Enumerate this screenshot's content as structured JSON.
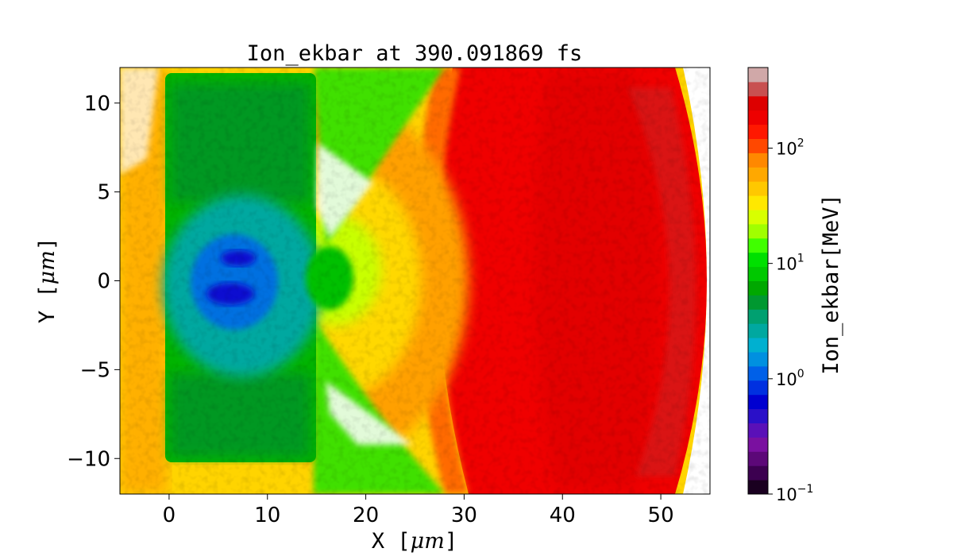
{
  "chart_data": {
    "type": "heatmap",
    "title": "Ion_ekbar at 390.091869 fs",
    "xlabel": {
      "prefix": "X [",
      "math": "μm",
      "suffix": "]"
    },
    "ylabel": {
      "prefix": "Y [",
      "math": "μm",
      "suffix": "]"
    },
    "xlim": [
      -5,
      55
    ],
    "ylim": [
      -12,
      12
    ],
    "x_ticks": [
      0,
      10,
      20,
      30,
      40,
      50
    ],
    "x_tick_labels": [
      "0",
      "10",
      "20",
      "30",
      "40",
      "50"
    ],
    "y_ticks": [
      -10,
      -5,
      0,
      5,
      10
    ],
    "y_tick_labels": [
      "−10",
      "−5",
      "0",
      "5",
      "10"
    ],
    "grid": false,
    "colorbar": {
      "label": "Ion_ekbar[MeV]",
      "scale": "log",
      "range": [
        0.1,
        500
      ],
      "ticks": [
        {
          "value": 0.1,
          "base": "10",
          "exp": "−1"
        },
        {
          "value": 1,
          "base": "10",
          "exp": "0"
        },
        {
          "value": 10,
          "base": "10",
          "exp": "1"
        },
        {
          "value": 100,
          "base": "10",
          "exp": "2"
        }
      ],
      "colors": [
        "#1a0020",
        "#3c0050",
        "#5c0878",
        "#7a10a0",
        "#5a10b8",
        "#2a10c8",
        "#0000d0",
        "#0030e0",
        "#0060e8",
        "#0090e0",
        "#00b0d0",
        "#00a8a0",
        "#00a070",
        "#009830",
        "#00a800",
        "#00c800",
        "#00e000",
        "#40ff00",
        "#a0ff00",
        "#d8ff00",
        "#ffe800",
        "#ffc800",
        "#ffa800",
        "#ff8800",
        "#ff4800",
        "#ff1800",
        "#ee0000",
        "#dd0000",
        "#c85050",
        "#d0a8a8"
      ]
    }
  }
}
